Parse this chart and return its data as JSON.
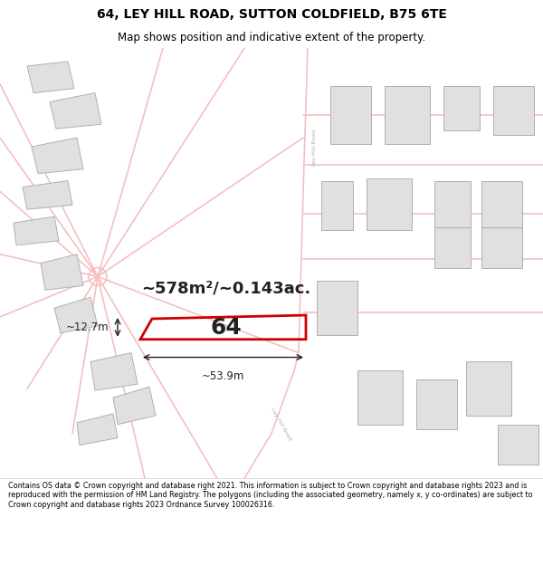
{
  "title_line1": "64, LEY HILL ROAD, SUTTON COLDFIELD, B75 6TE",
  "title_line2": "Map shows position and indicative extent of the property.",
  "footer_text": "Contains OS data © Crown copyright and database right 2021. This information is subject to Crown copyright and database rights 2023 and is reproduced with the permission of HM Land Registry. The polygons (including the associated geometry, namely x, y co-ordinates) are subject to Crown copyright and database rights 2023 Ordnance Survey 100026316.",
  "map_bg": "#ffffff",
  "road_color": "#f5c0c0",
  "building_fill": "#e0e0e0",
  "building_stroke": "#b0b0b0",
  "highlight_stroke": "#cc0000",
  "highlight_lw": 2.0,
  "label_64": "64",
  "area_label": "~578m²/~0.143ac.",
  "dim_width": "~53.9m",
  "dim_height": "~12.7m",
  "road_label_color": "#b0b0b0",
  "dim_color": "#222222",
  "title_fontsize": 10,
  "subtitle_fontsize": 8.5,
  "footer_fontsize": 5.8
}
